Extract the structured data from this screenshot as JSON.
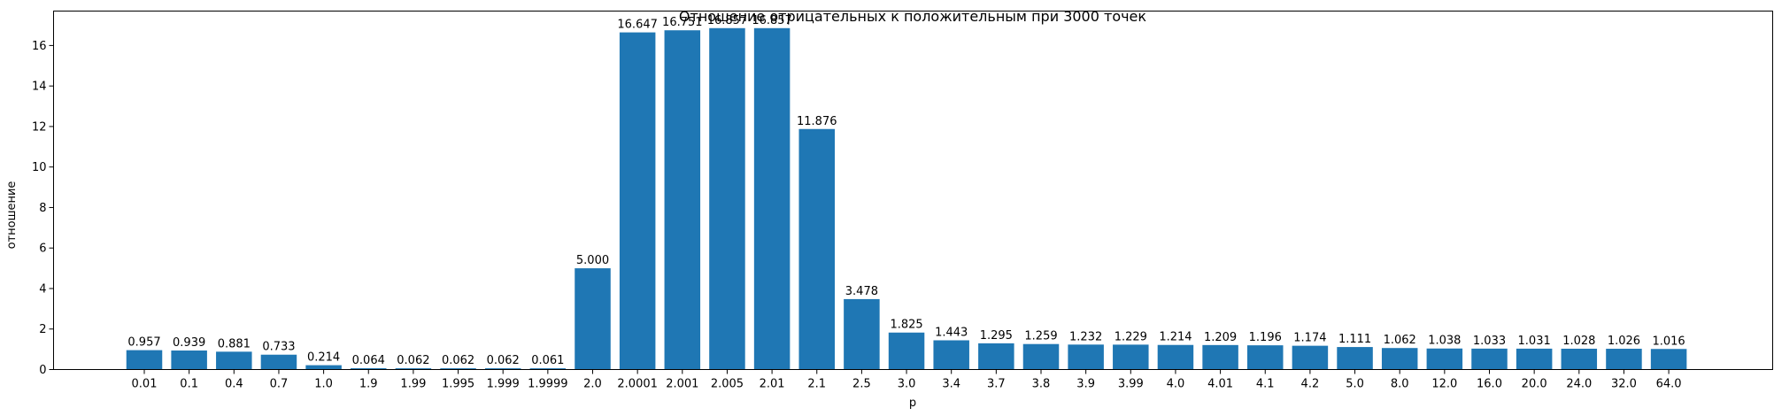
{
  "chart_data": {
    "type": "bar",
    "title": "Отношение отрицательных к положительным при 3000 точек",
    "xlabel": "p",
    "ylabel": "отношение",
    "ylim": [
      0,
      17.7
    ],
    "yticks": [
      0,
      2,
      4,
      6,
      8,
      10,
      12,
      14,
      16
    ],
    "grid": false,
    "bar_color": "#1f77b4",
    "categories": [
      "0.01",
      "0.1",
      "0.4",
      "0.7",
      "1.0",
      "1.9",
      "1.99",
      "1.995",
      "1.999",
      "1.9999",
      "2.0",
      "2.0001",
      "2.001",
      "2.005",
      "2.01",
      "2.1",
      "2.5",
      "3.0",
      "3.4",
      "3.7",
      "3.8",
      "3.9",
      "3.99",
      "4.0",
      "4.01",
      "4.1",
      "4.2",
      "5.0",
      "8.0",
      "12.0",
      "16.0",
      "20.0",
      "24.0",
      "32.0",
      "64.0"
    ],
    "values": [
      0.957,
      0.939,
      0.881,
      0.733,
      0.214,
      0.064,
      0.062,
      0.062,
      0.062,
      0.061,
      5.0,
      16.647,
      16.751,
      16.857,
      16.857,
      11.876,
      3.478,
      1.825,
      1.443,
      1.295,
      1.259,
      1.232,
      1.229,
      1.214,
      1.209,
      1.196,
      1.174,
      1.111,
      1.062,
      1.038,
      1.033,
      1.031,
      1.028,
      1.026,
      1.016
    ],
    "value_labels": [
      "0.957",
      "0.939",
      "0.881",
      "0.733",
      "0.214",
      "0.064",
      "0.062",
      "0.062",
      "0.062",
      "0.061",
      "5.000",
      "16.647",
      "16.751",
      "16.857",
      "16.857",
      "11.876",
      "3.478",
      "1.825",
      "1.443",
      "1.295",
      "1.259",
      "1.232",
      "1.229",
      "1.214",
      "1.209",
      "1.196",
      "1.174",
      "1.111",
      "1.062",
      "1.038",
      "1.033",
      "1.031",
      "1.028",
      "1.026",
      "1.016"
    ]
  }
}
